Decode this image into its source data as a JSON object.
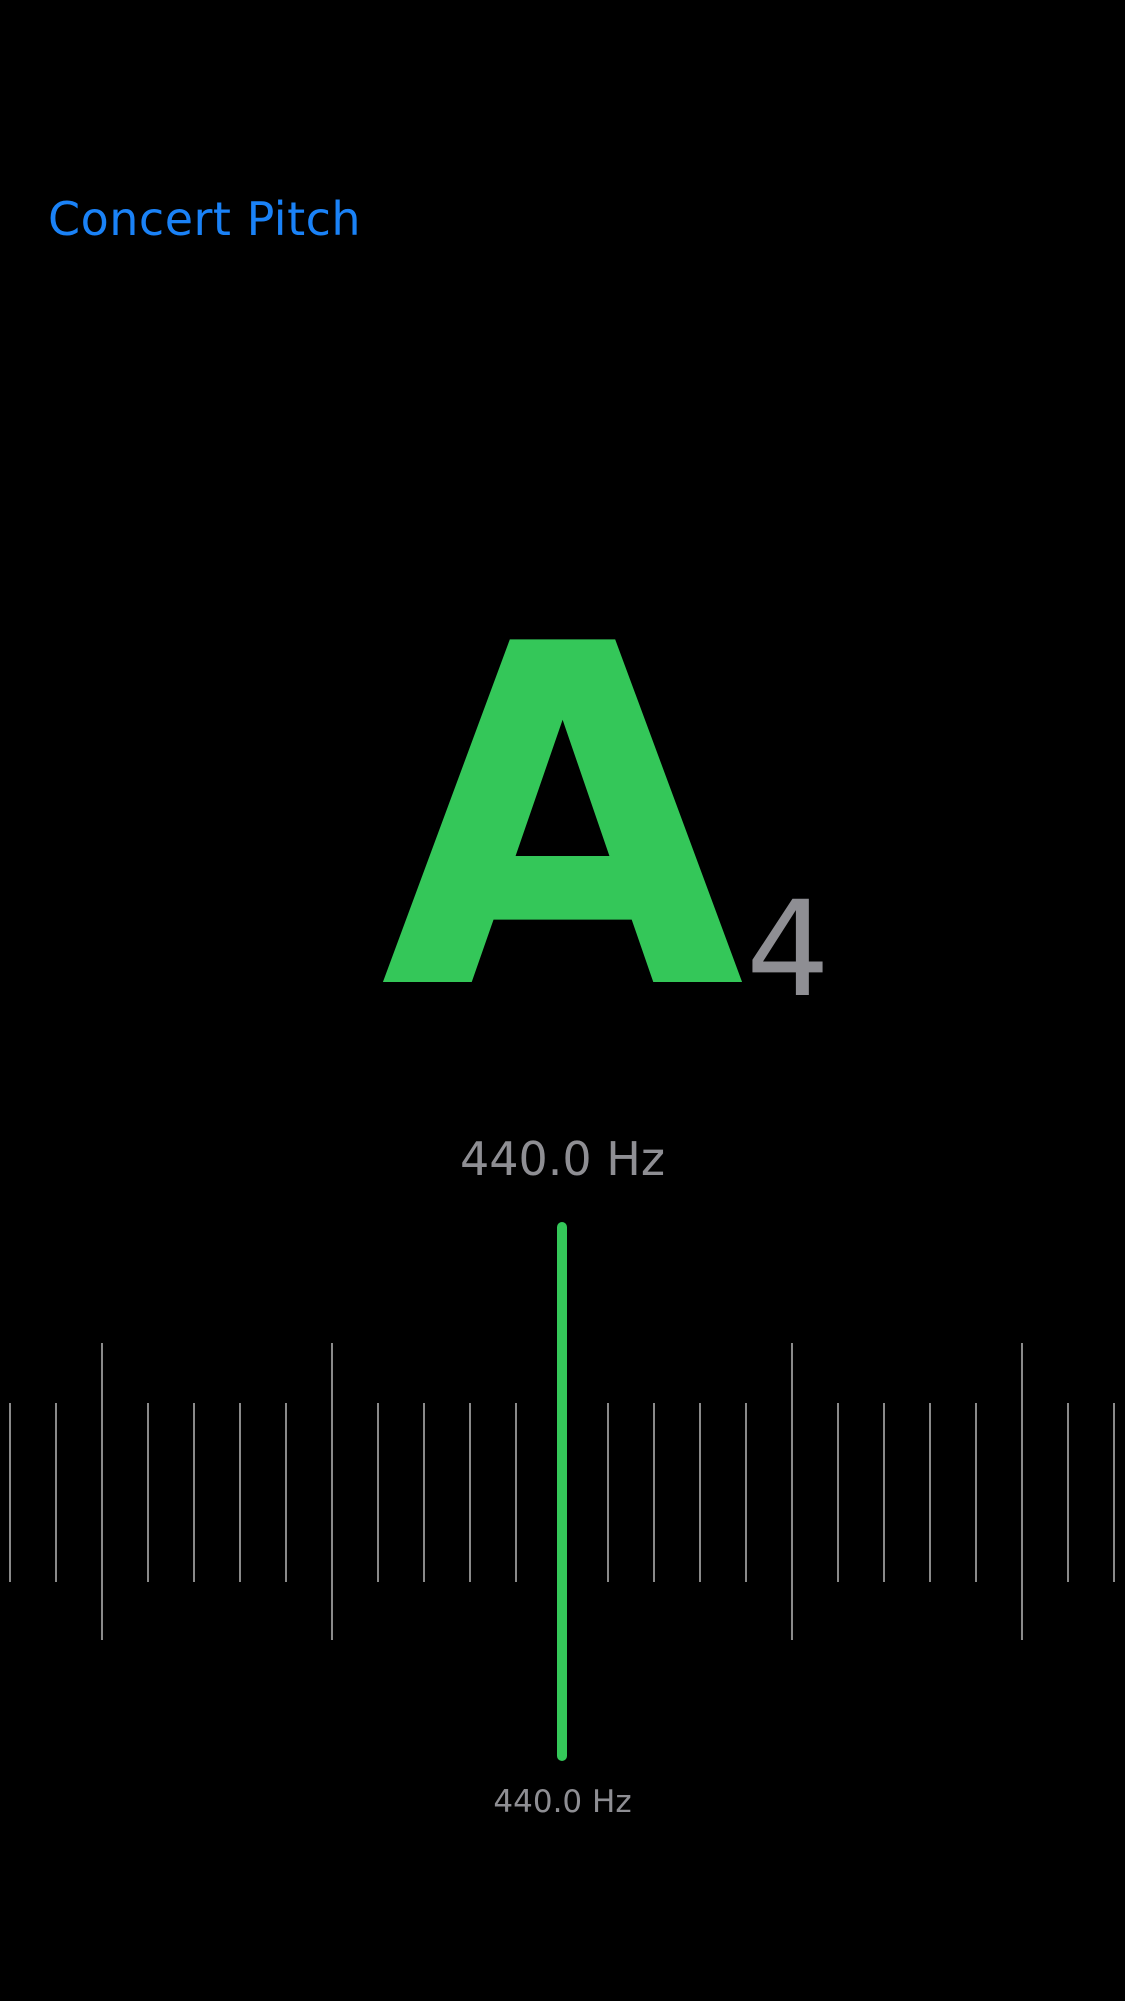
{
  "header": {
    "concert_pitch_label": "Concert Pitch"
  },
  "note": {
    "name": "A",
    "octave": "4"
  },
  "frequency": {
    "display": "440.0 Hz",
    "target_display": "440.0 Hz",
    "cents_offset": 0
  },
  "colors": {
    "background": "#000000",
    "accent_blue": "#1a82f7",
    "in_tune_green": "#34c759",
    "secondary_gray": "#8e8e93",
    "tick_gray": "#8a8a8a"
  },
  "meter": {
    "tick_count": 25,
    "major_every": 5
  }
}
